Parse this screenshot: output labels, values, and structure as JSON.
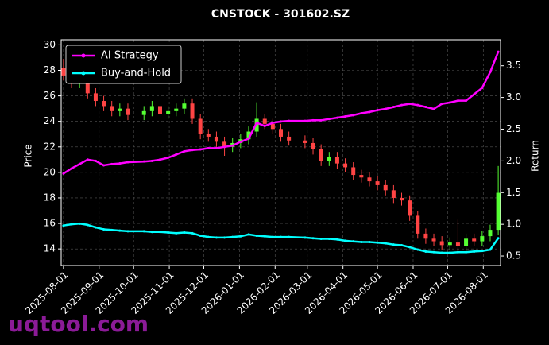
{
  "chart_data": {
    "type": "candlestick",
    "title": "CNSTOCK - 301602.SZ",
    "ylabel": "Price",
    "y2label": "Return",
    "watermark": "uqtool.com",
    "x": [
      "2025-08-01",
      "2025-08-08",
      "2025-08-15",
      "2025-08-22",
      "2025-08-29",
      "2025-09-05",
      "2025-09-12",
      "2025-09-19",
      "2025-09-26",
      "2025-10-10",
      "2025-10-17",
      "2025-10-24",
      "2025-10-31",
      "2025-11-07",
      "2025-11-14",
      "2025-11-21",
      "2025-11-28",
      "2025-12-05",
      "2025-12-12",
      "2025-12-19",
      "2025-12-26",
      "2026-01-02",
      "2026-01-09",
      "2026-01-16",
      "2026-01-23",
      "2026-01-30",
      "2026-02-06",
      "2026-02-13",
      "2026-02-27",
      "2026-03-06",
      "2026-03-13",
      "2026-03-20",
      "2026-03-27",
      "2026-04-03",
      "2026-04-10",
      "2026-04-17",
      "2026-04-24",
      "2026-05-01",
      "2026-05-08",
      "2026-05-15",
      "2026-05-22",
      "2026-05-29",
      "2026-06-05",
      "2026-06-12",
      "2026-06-19",
      "2026-06-26",
      "2026-07-03",
      "2026-07-10",
      "2026-07-17",
      "2026-07-24",
      "2026-07-31",
      "2026-08-07",
      "2026-08-14"
    ],
    "open": [
      28.2,
      27.6,
      27.0,
      27.8,
      26.2,
      25.6,
      25.2,
      24.8,
      25.0,
      24.5,
      24.8,
      25.2,
      24.6,
      24.8,
      25.0,
      25.4,
      24.2,
      23.0,
      22.8,
      22.4,
      22.0,
      22.3,
      22.6,
      23.2,
      24.2,
      23.8,
      23.4,
      22.8,
      22.5,
      22.3,
      21.8,
      20.9,
      21.2,
      20.7,
      20.4,
      19.8,
      19.6,
      19.3,
      19.0,
      18.6,
      18.0,
      17.8,
      16.6,
      15.2,
      14.8,
      14.6,
      14.3,
      14.5,
      14.2,
      14.8,
      14.6,
      15.0,
      15.5
    ],
    "high": [
      28.9,
      28.0,
      28.2,
      28.2,
      26.6,
      26.0,
      25.6,
      25.4,
      25.4,
      25.2,
      25.6,
      25.6,
      25.2,
      25.4,
      25.8,
      25.8,
      24.6,
      23.4,
      23.2,
      22.8,
      22.7,
      23.0,
      23.6,
      25.5,
      24.6,
      24.2,
      23.8,
      23.2,
      22.9,
      22.7,
      22.2,
      21.6,
      21.6,
      21.1,
      20.8,
      20.2,
      20.0,
      19.7,
      19.4,
      19.0,
      18.4,
      18.2,
      17.0,
      15.6,
      15.2,
      15.0,
      14.9,
      16.3,
      15.2,
      15.2,
      15.4,
      15.9,
      20.5
    ],
    "low": [
      27.2,
      26.6,
      26.6,
      25.8,
      25.2,
      24.8,
      24.4,
      24.4,
      24.1,
      24.1,
      24.4,
      24.2,
      24.2,
      24.4,
      24.6,
      23.8,
      22.6,
      22.4,
      22.0,
      21.3,
      21.6,
      21.9,
      22.2,
      22.8,
      23.4,
      23.0,
      22.4,
      22.1,
      21.9,
      21.4,
      20.5,
      20.5,
      20.3,
      20.0,
      19.4,
      19.2,
      18.9,
      18.6,
      18.2,
      17.6,
      17.4,
      16.2,
      14.8,
      14.4,
      14.2,
      13.9,
      13.9,
      13.6,
      13.8,
      14.2,
      14.2,
      14.6,
      15.1
    ],
    "close": [
      27.6,
      27.0,
      27.8,
      26.2,
      25.6,
      25.2,
      24.8,
      25.0,
      24.5,
      24.8,
      25.2,
      24.6,
      24.8,
      25.0,
      25.4,
      24.2,
      23.0,
      22.8,
      22.4,
      22.0,
      22.3,
      22.6,
      23.2,
      24.2,
      23.8,
      23.4,
      22.8,
      22.5,
      22.3,
      21.8,
      20.9,
      21.2,
      20.7,
      20.4,
      19.8,
      19.6,
      19.3,
      19.0,
      18.6,
      18.0,
      17.8,
      16.6,
      15.2,
      14.8,
      14.6,
      14.3,
      14.5,
      14.2,
      14.8,
      14.6,
      15.0,
      15.5,
      18.4
    ],
    "up_color": "#55ff33",
    "down_color": "#ff4444",
    "series": [
      {
        "name": "AI Strategy",
        "color": "#ff00ff",
        "axis": "y2",
        "values": [
          1.8,
          1.88,
          1.95,
          2.02,
          2.0,
          1.93,
          1.95,
          1.96,
          1.98,
          1.99,
          2.0,
          2.02,
          2.05,
          2.1,
          2.15,
          2.17,
          2.18,
          2.2,
          2.2,
          2.22,
          2.24,
          2.3,
          2.35,
          2.6,
          2.55,
          2.6,
          2.62,
          2.63,
          2.63,
          2.64,
          2.64,
          2.66,
          2.68,
          2.7,
          2.72,
          2.75,
          2.77,
          2.8,
          2.82,
          2.85,
          2.88,
          2.9,
          2.88,
          2.85,
          2.82,
          2.9,
          2.92,
          2.95,
          2.95,
          3.05,
          3.15,
          3.4,
          3.72
        ]
      },
      {
        "name": "Buy-and-Hold",
        "color": "#00ffff",
        "axis": "y2",
        "values": [
          0.98,
          1.0,
          1.01,
          0.99,
          0.95,
          0.92,
          0.91,
          0.9,
          0.89,
          0.89,
          0.88,
          0.88,
          0.87,
          0.86,
          0.87,
          0.86,
          0.82,
          0.8,
          0.79,
          0.79,
          0.8,
          0.81,
          0.84,
          0.82,
          0.81,
          0.8,
          0.8,
          0.8,
          0.79,
          0.78,
          0.77,
          0.77,
          0.76,
          0.74,
          0.73,
          0.72,
          0.72,
          0.71,
          0.7,
          0.68,
          0.67,
          0.64,
          0.6,
          0.57,
          0.56,
          0.55,
          0.55,
          0.56,
          0.56,
          0.57,
          0.58,
          0.6,
          0.78
        ]
      }
    ],
    "xlim": [
      "2025-07-30",
      "2026-08-16"
    ],
    "xticks": [
      "2025-08-01",
      "2025-09-01",
      "2025-10-01",
      "2025-11-01",
      "2025-12-01",
      "2026-01-01",
      "2026-02-01",
      "2026-03-01",
      "2026-04-01",
      "2026-05-01",
      "2026-06-01",
      "2026-07-01",
      "2026-08-01"
    ],
    "ylim": [
      12.7,
      30.4
    ],
    "yticks": [
      14,
      16,
      18,
      20,
      22,
      24,
      26,
      28,
      30
    ],
    "y2lim": [
      0.35,
      3.91
    ],
    "y2ticks": [
      0.5,
      {
        "value": 1,
        "label": "1.0"
      },
      1.5,
      {
        "value": 2,
        "label": "2.0"
      },
      2.5,
      {
        "value": 3,
        "label": "3.0"
      },
      3.5
    ],
    "grid": true,
    "legend": "upper left"
  }
}
